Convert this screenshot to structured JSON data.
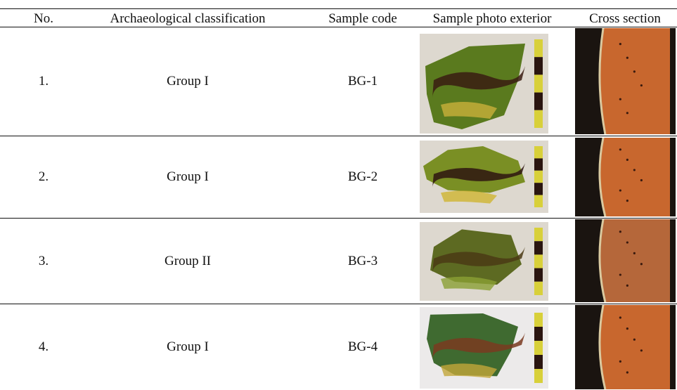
{
  "table": {
    "header": [
      "No.",
      "Archaeological classification",
      "Sample code",
      "Sample photo exterior",
      "Cross section"
    ],
    "rows": [
      [
        "1.",
        "Group I",
        "BG-1"
      ],
      [
        "2.",
        "Group I",
        "BG-2"
      ],
      [
        "3.",
        "Group II",
        "BG-3"
      ],
      [
        "4.",
        "Group I",
        "BG-4"
      ]
    ]
  }
}
